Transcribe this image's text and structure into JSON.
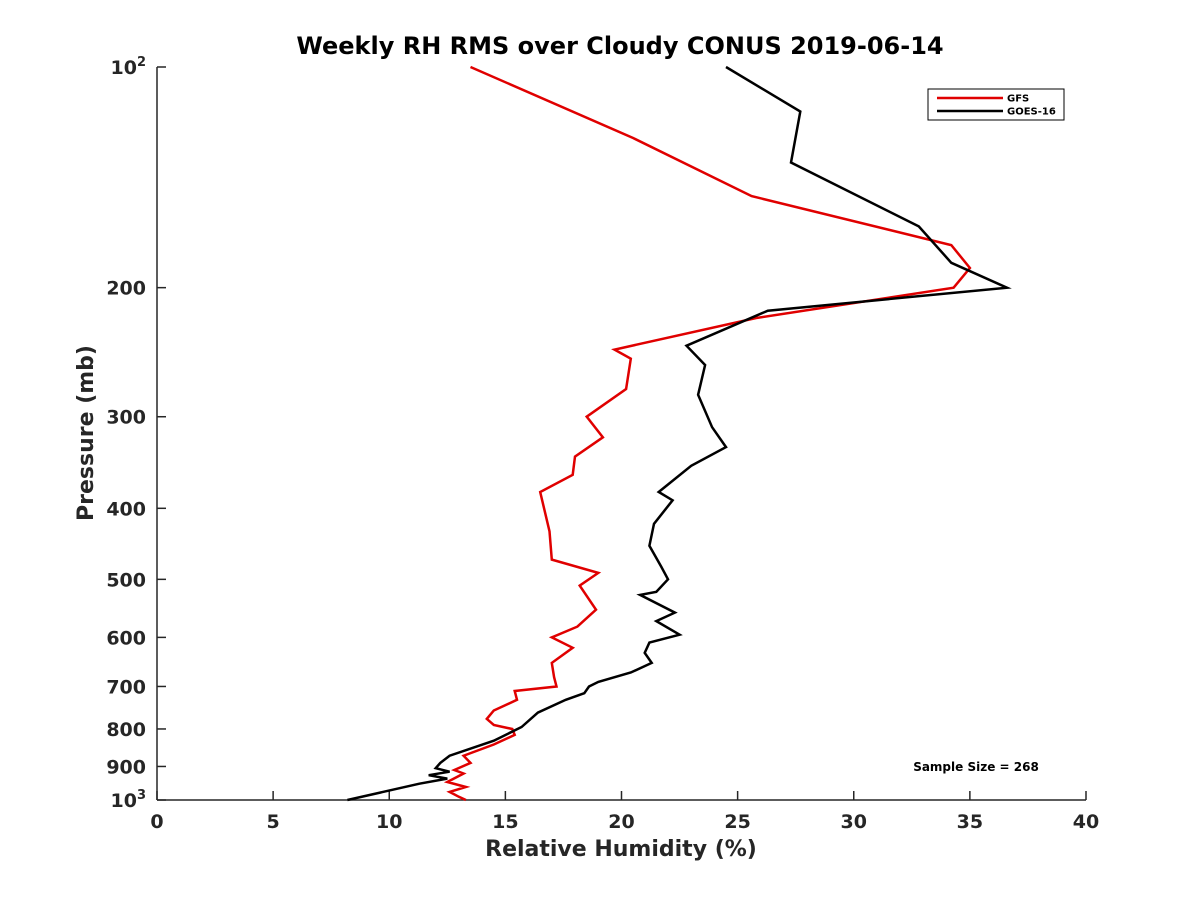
{
  "chart_data": {
    "type": "line",
    "title": "Weekly RH RMS over Cloudy CONUS 2019-06-14",
    "xlabel": "Relative Humidity (%)",
    "ylabel": "Pressure (mb)",
    "xlim": [
      0,
      40
    ],
    "ylim": [
      100,
      1000
    ],
    "yscale": "log",
    "y_reversed": true,
    "grid": false,
    "x_ticks": [
      "0",
      "5",
      "10",
      "15",
      "20",
      "25",
      "30",
      "35",
      "40"
    ],
    "y_ticks": [
      {
        "value": 100,
        "label": "10",
        "sup": "2"
      },
      {
        "value": 200,
        "label": "200",
        "sup": ""
      },
      {
        "value": 300,
        "label": "300",
        "sup": ""
      },
      {
        "value": 400,
        "label": "400",
        "sup": ""
      },
      {
        "value": 500,
        "label": "500",
        "sup": ""
      },
      {
        "value": 600,
        "label": "600",
        "sup": ""
      },
      {
        "value": 700,
        "label": "700",
        "sup": ""
      },
      {
        "value": 800,
        "label": "800",
        "sup": ""
      },
      {
        "value": 900,
        "label": "900",
        "sup": ""
      },
      {
        "value": 1000,
        "label": "10",
        "sup": "3"
      }
    ],
    "legend_position": "top-right",
    "annotation": "Sample Size = 268",
    "series": [
      {
        "name": "GFS",
        "color": "#e00000",
        "points": [
          [
            13.5,
            100
          ],
          [
            20.5,
            125
          ],
          [
            25.6,
            150
          ],
          [
            34.2,
            175
          ],
          [
            35.0,
            188
          ],
          [
            34.3,
            200
          ],
          [
            25.8,
            220
          ],
          [
            19.7,
            243
          ],
          [
            20.4,
            250
          ],
          [
            20.2,
            275
          ],
          [
            18.5,
            300
          ],
          [
            19.2,
            320
          ],
          [
            18.0,
            340
          ],
          [
            17.9,
            360
          ],
          [
            16.5,
            380
          ],
          [
            16.9,
            430
          ],
          [
            17.0,
            470
          ],
          [
            19.0,
            490
          ],
          [
            18.2,
            510
          ],
          [
            18.9,
            550
          ],
          [
            18.1,
            580
          ],
          [
            17.0,
            600
          ],
          [
            17.9,
            620
          ],
          [
            17.0,
            650
          ],
          [
            17.1,
            680
          ],
          [
            17.2,
            700
          ],
          [
            15.4,
            710
          ],
          [
            15.5,
            730
          ],
          [
            14.5,
            755
          ],
          [
            14.2,
            775
          ],
          [
            14.5,
            790
          ],
          [
            15.3,
            800
          ],
          [
            15.4,
            815
          ],
          [
            14.5,
            840
          ],
          [
            13.2,
            870
          ],
          [
            13.5,
            890
          ],
          [
            12.8,
            910
          ],
          [
            13.2,
            920
          ],
          [
            12.5,
            945
          ],
          [
            13.3,
            960
          ],
          [
            12.6,
            975
          ],
          [
            13.0,
            990
          ],
          [
            13.3,
            1000
          ]
        ]
      },
      {
        "name": "GOES-16",
        "color": "#000000",
        "points": [
          [
            24.5,
            100
          ],
          [
            27.7,
            115
          ],
          [
            27.3,
            135
          ],
          [
            32.8,
            165
          ],
          [
            34.2,
            185
          ],
          [
            36.6,
            200
          ],
          [
            26.3,
            215
          ],
          [
            22.8,
            240
          ],
          [
            23.6,
            255
          ],
          [
            23.3,
            280
          ],
          [
            23.9,
            310
          ],
          [
            24.5,
            330
          ],
          [
            23.0,
            350
          ],
          [
            21.6,
            380
          ],
          [
            22.2,
            390
          ],
          [
            21.4,
            420
          ],
          [
            21.2,
            450
          ],
          [
            21.7,
            480
          ],
          [
            22.0,
            500
          ],
          [
            21.5,
            520
          ],
          [
            20.8,
            525
          ],
          [
            22.3,
            555
          ],
          [
            21.5,
            570
          ],
          [
            22.5,
            595
          ],
          [
            21.2,
            610
          ],
          [
            21.0,
            630
          ],
          [
            21.3,
            650
          ],
          [
            20.4,
            670
          ],
          [
            19.0,
            690
          ],
          [
            18.6,
            700
          ],
          [
            18.4,
            715
          ],
          [
            17.6,
            730
          ],
          [
            16.4,
            760
          ],
          [
            15.7,
            795
          ],
          [
            14.5,
            830
          ],
          [
            12.6,
            870
          ],
          [
            12.2,
            890
          ],
          [
            12.0,
            905
          ],
          [
            12.6,
            915
          ],
          [
            11.7,
            925
          ],
          [
            12.5,
            935
          ],
          [
            11.3,
            950
          ],
          [
            8.2,
            1000
          ]
        ]
      }
    ]
  }
}
